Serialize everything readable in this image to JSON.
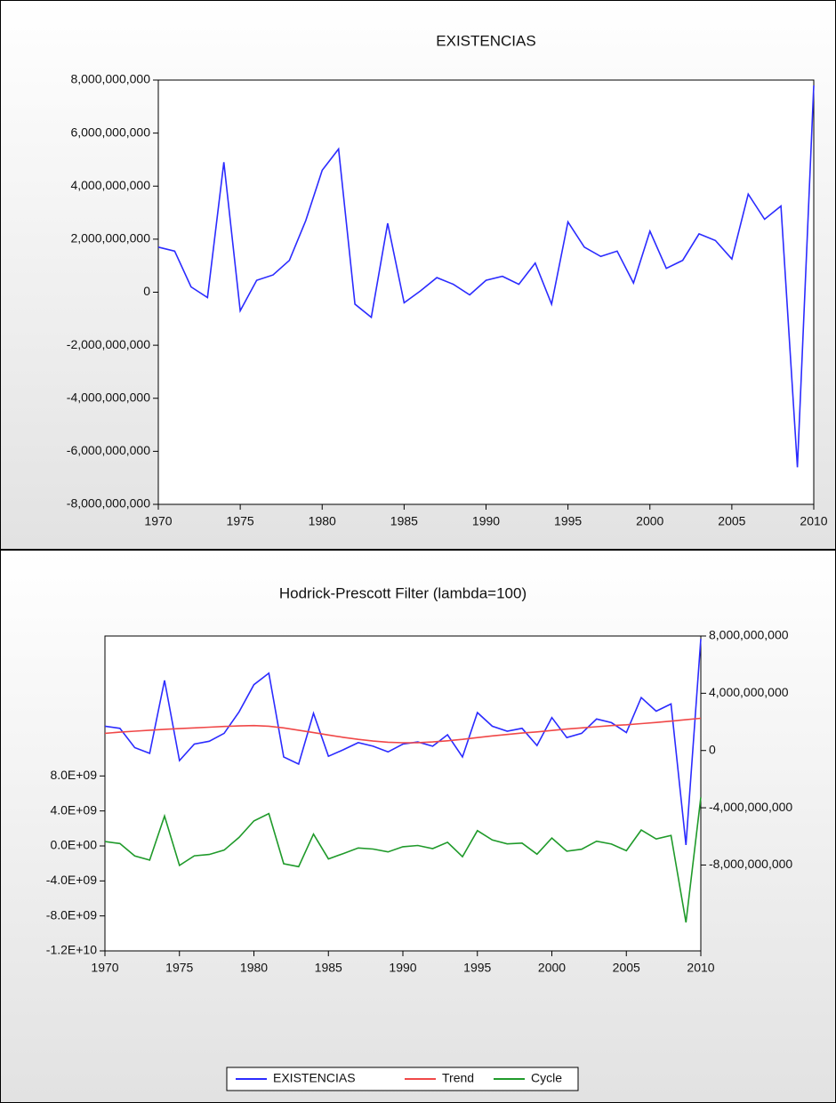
{
  "chart_data": [
    {
      "type": "line",
      "title": "EXISTENCIAS",
      "x": [
        1970,
        1971,
        1972,
        1973,
        1974,
        1975,
        1976,
        1977,
        1978,
        1979,
        1980,
        1981,
        1982,
        1983,
        1984,
        1985,
        1986,
        1987,
        1988,
        1989,
        1990,
        1991,
        1992,
        1993,
        1994,
        1995,
        1996,
        1997,
        1998,
        1999,
        2000,
        2001,
        2002,
        2003,
        2004,
        2005,
        2006,
        2007,
        2008,
        2009,
        2010
      ],
      "values": [
        1700000000.0,
        1550000000.0,
        200000000.0,
        -200000000.0,
        4900000000.0,
        -700000000.0,
        450000000.0,
        650000000.0,
        1200000000.0,
        2700000000.0,
        4600000000.0,
        5400000000.0,
        -450000000.0,
        -950000000.0,
        2600000000.0,
        -400000000.0,
        50000000.0,
        550000000.0,
        300000000.0,
        -100000000.0,
        450000000.0,
        600000000.0,
        300000000.0,
        1100000000.0,
        -450000000.0,
        2650000000.0,
        1700000000.0,
        1350000000.0,
        1550000000.0,
        350000000.0,
        2300000000.0,
        900000000.0,
        1200000000.0,
        2200000000.0,
        1950000000.0,
        1250000000.0,
        3700000000.0,
        2750000000.0,
        3250000000.0,
        -6600000000.0,
        7800000000.0
      ],
      "color": "#2b2bff",
      "xlim": [
        1970,
        2010
      ],
      "xticks": [
        1970,
        1975,
        1980,
        1985,
        1990,
        1995,
        2000,
        2005,
        2010
      ],
      "ylim": [
        -8000000000.0,
        8000000000.0
      ],
      "yticks": [
        {
          "value": 8000000000.0,
          "label": "8,000,000,000"
        },
        {
          "value": 6000000000.0,
          "label": "6,000,000,000"
        },
        {
          "value": 4000000000.0,
          "label": "4,000,000,000"
        },
        {
          "value": 2000000000.0,
          "label": "2,000,000,000"
        },
        0,
        {
          "value": -2000000000.0,
          "label": "-2,000,000,000"
        },
        {
          "value": -4000000000.0,
          "label": "-4,000,000,000"
        },
        {
          "value": -6000000000.0,
          "label": "-6,000,000,000"
        },
        {
          "value": -8000000000.0,
          "label": "-8,000,000,000"
        }
      ]
    },
    {
      "type": "line",
      "title": "Hodrick-Prescott Filter (lambda=100)",
      "x": [
        1970,
        1971,
        1972,
        1973,
        1974,
        1975,
        1976,
        1977,
        1978,
        1979,
        1980,
        1981,
        1982,
        1983,
        1984,
        1985,
        1986,
        1987,
        1988,
        1989,
        1990,
        1991,
        1992,
        1993,
        1994,
        1995,
        1996,
        1997,
        1998,
        1999,
        2000,
        2001,
        2002,
        2003,
        2004,
        2005,
        2006,
        2007,
        2008,
        2009,
        2010
      ],
      "series": [
        {
          "name": "EXISTENCIAS",
          "color": "#2b2bff",
          "axis": "y2",
          "values": [
            1700000000.0,
            1550000000.0,
            200000000.0,
            -200000000.0,
            4900000000.0,
            -700000000.0,
            450000000.0,
            650000000.0,
            1200000000.0,
            2700000000.0,
            4600000000.0,
            5400000000.0,
            -450000000.0,
            -950000000.0,
            2600000000.0,
            -400000000.0,
            50000000.0,
            550000000.0,
            300000000.0,
            -100000000.0,
            450000000.0,
            600000000.0,
            300000000.0,
            1100000000.0,
            -450000000.0,
            2650000000.0,
            1700000000.0,
            1350000000.0,
            1550000000.0,
            350000000.0,
            2300000000.0,
            900000000.0,
            1200000000.0,
            2200000000.0,
            1950000000.0,
            1250000000.0,
            3700000000.0,
            2750000000.0,
            3250000000.0,
            -6600000000.0,
            7800000000.0
          ]
        },
        {
          "name": "Trend",
          "color": "#f04848",
          "axis": "y2",
          "values": [
            1200000000.0,
            1280000000.0,
            1350000000.0,
            1420000000.0,
            1480000000.0,
            1530000000.0,
            1580000000.0,
            1630000000.0,
            1680000000.0,
            1720000000.0,
            1740000000.0,
            1700000000.0,
            1580000000.0,
            1420000000.0,
            1250000000.0,
            1080000000.0,
            920000000.0,
            780000000.0,
            660000000.0,
            580000000.0,
            540000000.0,
            550000000.0,
            600000000.0,
            680000000.0,
            780000000.0,
            900000000.0,
            1020000000.0,
            1120000000.0,
            1220000000.0,
            1300000000.0,
            1400000000.0,
            1500000000.0,
            1580000000.0,
            1660000000.0,
            1740000000.0,
            1800000000.0,
            1880000000.0,
            1960000000.0,
            2050000000.0,
            2150000000.0,
            2250000000.0
          ]
        },
        {
          "name": "Cycle",
          "color": "#1f9a2a",
          "axis": "y",
          "values": [
            500000000.0,
            270000000.0,
            -1150000000.0,
            -1620000000.0,
            3420000000.0,
            -2230000000.0,
            -1130000000.0,
            -980000000.0,
            -480000000.0,
            980000000.0,
            2860000000.0,
            3700000000.0,
            -2030000000.0,
            -2370000000.0,
            1350000000.0,
            -1480000000.0,
            -870000000.0,
            -230000000.0,
            -360000000.0,
            -680000000.0,
            -90000000.0,
            50000000.0,
            -300000000.0,
            420000000.0,
            -1230000000.0,
            1750000000.0,
            680000000.0,
            230000000.0,
            330000000.0,
            -950000000.0,
            900000000.0,
            -600000000.0,
            -380000000.0,
            540000000.0,
            210000000.0,
            -550000000.0,
            1820000000.0,
            790000000.0,
            1200000000.0,
            -8750000000.0,
            5550000000.0
          ]
        }
      ],
      "xlim": [
        1970,
        2010
      ],
      "xticks": [
        1970,
        1975,
        1980,
        1985,
        1990,
        1995,
        2000,
        2005,
        2010
      ],
      "ylim": [
        -12000000000.0,
        24000000000.0
      ],
      "yticks": [
        {
          "value": 8000000000.0,
          "label": "8.0E+09"
        },
        {
          "value": 4000000000.0,
          "label": "4.0E+09"
        },
        {
          "value": 0,
          "label": "0.0E+00"
        },
        {
          "value": -4000000000.0,
          "label": "-4.0E+09"
        },
        {
          "value": -8000000000.0,
          "label": "-8.0E+09"
        },
        {
          "value": -12000000000.0,
          "label": "-1.2E+10"
        }
      ],
      "y2lim": [
        -14000000000.0,
        8000000000.0
      ],
      "y2ticks": [
        {
          "value": 8000000000.0,
          "label": "8,000,000,000"
        },
        {
          "value": 4000000000.0,
          "label": "4,000,000,000"
        },
        0,
        {
          "value": -4000000000.0,
          "label": "-4,000,000,000"
        },
        {
          "value": -8000000000.0,
          "label": "-8,000,000,000"
        }
      ],
      "legend": "bottom"
    }
  ]
}
